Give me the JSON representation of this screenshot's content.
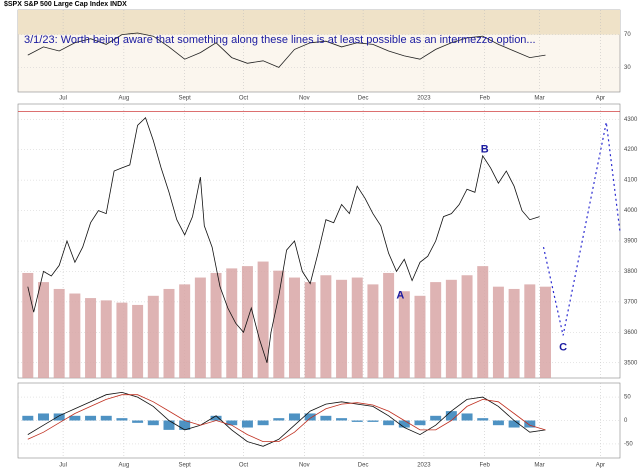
{
  "chart_data": [
    {
      "type": "line",
      "annotation": "3/1/23:  Worth being aware that something along these lines is at least possible as an intermezzo option...",
      "xlim": [
        -5,
        302
      ],
      "ylim": [
        0,
        100
      ],
      "yticks": [
        30,
        70
      ],
      "x": [
        0,
        8,
        16,
        24,
        32,
        40,
        48,
        56,
        64,
        72,
        80,
        88,
        96,
        104,
        112,
        120,
        128,
        136,
        144,
        152,
        160,
        168,
        176,
        184,
        192,
        200,
        208,
        216,
        224,
        232,
        240,
        248,
        256,
        264
      ],
      "series": [
        {
          "color": "#222222",
          "values": [
            45,
            55,
            50,
            60,
            65,
            58,
            70,
            72,
            68,
            55,
            40,
            48,
            60,
            42,
            35,
            38,
            30,
            52,
            60,
            62,
            55,
            60,
            58,
            50,
            44,
            40,
            52,
            60,
            66,
            68,
            58,
            50,
            42,
            45
          ]
        }
      ]
    },
    {
      "type": "line",
      "title": "$SPX S&P 500 Large Cap Index INDX",
      "xlim": [
        -5,
        302
      ],
      "ylim": [
        3450,
        4350
      ],
      "yticks": [
        3500,
        3600,
        3700,
        3800,
        3900,
        4000,
        4100,
        4200,
        4300
      ],
      "y2lim": [
        0,
        12
      ],
      "xticks": [
        {
          "value": 18,
          "label": "Jul"
        },
        {
          "value": 49,
          "label": "Aug"
        },
        {
          "value": 80,
          "label": "Sept"
        },
        {
          "value": 110,
          "label": "Oct"
        },
        {
          "value": 141,
          "label": "Nov"
        },
        {
          "value": 171,
          "label": "Dec"
        },
        {
          "value": 202,
          "label": "2023"
        },
        {
          "value": 233,
          "label": "Feb"
        },
        {
          "value": 261,
          "label": "Mar"
        },
        {
          "value": 292,
          "label": "Apr"
        }
      ],
      "reference_line": {
        "value": 4325,
        "color": "#d04040"
      },
      "series": [
        {
          "type": "bar",
          "axis": "y2",
          "color": "#d8a6a6",
          "x": [
            0,
            8,
            16,
            24,
            32,
            40,
            48,
            56,
            64,
            72,
            80,
            88,
            96,
            104,
            112,
            120,
            128,
            136,
            144,
            152,
            160,
            168,
            176,
            184,
            192,
            200,
            208,
            216,
            224,
            232,
            240,
            248,
            256,
            264
          ],
          "values": [
            4.6,
            4.2,
            3.9,
            3.7,
            3.5,
            3.4,
            3.3,
            3.2,
            3.6,
            3.9,
            4.1,
            4.4,
            4.6,
            4.8,
            4.9,
            5.1,
            4.7,
            4.4,
            4.2,
            4.5,
            4.3,
            4.4,
            4.1,
            4.6,
            3.8,
            3.6,
            4.2,
            4.3,
            4.5,
            4.9,
            4.0,
            3.9,
            4.1,
            4.0
          ]
        },
        {
          "type": "line",
          "color": "#111111",
          "x": [
            0,
            3,
            8,
            12,
            16,
            20,
            24,
            28,
            32,
            36,
            40,
            44,
            48,
            52,
            56,
            60,
            64,
            68,
            72,
            76,
            80,
            84,
            88,
            90,
            94,
            98,
            102,
            106,
            110,
            114,
            118,
            122,
            124,
            128,
            132,
            136,
            140,
            144,
            148,
            152,
            156,
            160,
            164,
            168,
            172,
            176,
            180,
            184,
            188,
            192,
            196,
            200,
            204,
            208,
            212,
            216,
            220,
            224,
            228,
            232,
            236,
            240,
            244,
            248,
            252,
            256,
            261
          ],
          "values": [
            3750,
            3666,
            3800,
            3785,
            3820,
            3900,
            3830,
            3880,
            3960,
            4000,
            3990,
            4130,
            4140,
            4150,
            4280,
            4305,
            4230,
            4140,
            4060,
            3970,
            3920,
            3980,
            4110,
            3950,
            3880,
            3750,
            3680,
            3630,
            3600,
            3680,
            3580,
            3500,
            3600,
            3720,
            3870,
            3900,
            3800,
            3760,
            3860,
            3970,
            3960,
            4020,
            3990,
            4080,
            4040,
            3990,
            3950,
            3860,
            3800,
            3840,
            3770,
            3830,
            3850,
            3900,
            3980,
            3990,
            4020,
            4070,
            4060,
            4180,
            4140,
            4090,
            4130,
            4080,
            4000,
            3970,
            3980
          ]
        },
        {
          "type": "line",
          "dashed": true,
          "color": "#2a2ad0",
          "x": [
            263,
            273,
            295,
            302
          ],
          "values": [
            3880,
            3590,
            4290,
            3930
          ]
        }
      ],
      "annotations": [
        {
          "text": "A",
          "x": 190,
          "y": 3720
        },
        {
          "text": "B",
          "x": 233,
          "y": 4200
        },
        {
          "text": "C",
          "x": 273,
          "y": 3550
        }
      ]
    },
    {
      "type": "line",
      "xlim": [
        -5,
        302
      ],
      "ylim": [
        -80,
        80
      ],
      "yticks": [
        -50,
        0,
        50
      ],
      "x": [
        0,
        8,
        16,
        24,
        32,
        40,
        48,
        56,
        64,
        72,
        80,
        88,
        96,
        104,
        112,
        120,
        128,
        136,
        144,
        152,
        160,
        168,
        176,
        184,
        192,
        200,
        208,
        216,
        224,
        232,
        240,
        248,
        256,
        264
      ],
      "series": [
        {
          "type": "bar",
          "color": "#2f7fb8",
          "values": [
            10,
            15,
            15,
            10,
            10,
            10,
            5,
            -5,
            -10,
            -20,
            -20,
            0,
            10,
            -10,
            -15,
            -10,
            5,
            15,
            15,
            10,
            5,
            -3,
            -3,
            -10,
            -15,
            -10,
            10,
            20,
            15,
            5,
            -10,
            -15,
            -15,
            0
          ]
        },
        {
          "type": "line",
          "color": "#111111",
          "values": [
            -30,
            -10,
            10,
            25,
            40,
            55,
            60,
            50,
            30,
            0,
            -20,
            -10,
            10,
            -20,
            -45,
            -55,
            -40,
            -10,
            20,
            35,
            40,
            35,
            30,
            10,
            -15,
            -30,
            -10,
            20,
            45,
            50,
            30,
            0,
            -25,
            -20
          ]
        },
        {
          "type": "line",
          "color": "#c03020",
          "values": [
            -40,
            -25,
            -5,
            15,
            30,
            45,
            55,
            55,
            40,
            20,
            0,
            -10,
            0,
            -10,
            -30,
            -45,
            -45,
            -25,
            5,
            25,
            35,
            38,
            33,
            20,
            0,
            -20,
            -20,
            0,
            30,
            45,
            40,
            15,
            -10,
            -20
          ]
        }
      ]
    }
  ]
}
